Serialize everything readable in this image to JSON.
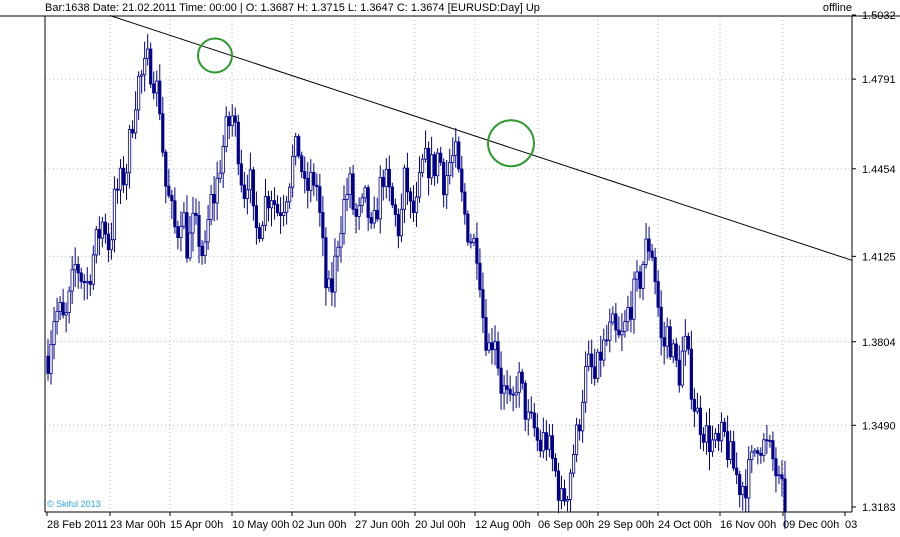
{
  "chart_data": {
    "type": "candlestick",
    "header_text": "Bar:1638 Date: 21.02.2011 Time: 00:00 | O: 1.3687 H: 1.3715 L: 1.3647 C: 1.3674 [EURUSD:Day] Up",
    "status_text": "offline",
    "watermark": "© Skiful 2013",
    "symbol": "EURUSD",
    "timeframe": "Day",
    "ylim": [
      1.3183,
      1.5032
    ],
    "y_ticks": [
      "1.5032",
      "1.4791",
      "1.4454",
      "1.4125",
      "1.3804",
      "1.3490",
      "1.3183"
    ],
    "x_ticks": [
      "28 Feb 2011",
      "23 Mar 00h",
      "15 Apr 00h",
      "10 May 00h",
      "02 Jun 00h",
      "27 Jun 00h",
      "20 Jul 00h",
      "12 Aug 00h",
      "06 Sep 00h",
      "29 Sep 00h",
      "24 Oct 00h",
      "16 Nov 00h",
      "09 Dec 00h",
      "03"
    ],
    "trendline": {
      "start_value": 1.503,
      "end_value": 1.411
    },
    "highlight_circles": [
      {
        "near": "15 Apr 00h",
        "price": 1.488
      },
      {
        "near": "12 Aug 00h",
        "price": 1.455
      }
    ],
    "close_path": [
      1.375,
      1.39,
      1.392,
      1.386,
      1.398,
      1.41,
      1.405,
      1.402,
      1.412,
      1.42,
      1.427,
      1.415,
      1.435,
      1.44,
      1.445,
      1.462,
      1.478,
      1.48,
      1.486,
      1.48,
      1.47,
      1.44,
      1.43,
      1.42,
      1.432,
      1.415,
      1.424,
      1.42,
      1.41,
      1.432,
      1.436,
      1.45,
      1.46,
      1.465,
      1.455,
      1.436,
      1.446,
      1.42,
      1.426,
      1.434,
      1.437,
      1.43,
      1.432,
      1.44,
      1.45,
      1.453,
      1.436,
      1.44,
      1.442,
      1.42,
      1.396,
      1.402,
      1.421,
      1.432,
      1.44,
      1.426,
      1.428,
      1.434,
      1.418,
      1.432,
      1.444,
      1.436,
      1.428,
      1.422,
      1.444,
      1.428,
      1.43,
      1.446,
      1.448,
      1.445,
      1.452,
      1.44,
      1.448,
      1.45,
      1.435,
      1.424,
      1.418,
      1.416,
      1.388,
      1.378,
      1.385,
      1.365,
      1.36,
      1.353,
      1.368,
      1.36,
      1.35,
      1.348,
      1.34,
      1.345,
      1.338,
      1.33,
      1.32,
      1.325,
      1.338,
      1.348,
      1.366,
      1.372,
      1.365,
      1.376,
      1.38,
      1.386,
      1.38,
      1.382,
      1.393,
      1.398,
      1.404,
      1.415,
      1.418,
      1.4,
      1.376,
      1.385,
      1.375,
      1.368,
      1.38,
      1.368,
      1.354,
      1.35,
      1.345,
      1.342,
      1.34,
      1.346,
      1.338,
      1.332,
      1.326,
      1.328,
      1.334,
      1.344,
      1.342,
      1.34,
      1.335,
      1.325,
      1.32
    ]
  }
}
